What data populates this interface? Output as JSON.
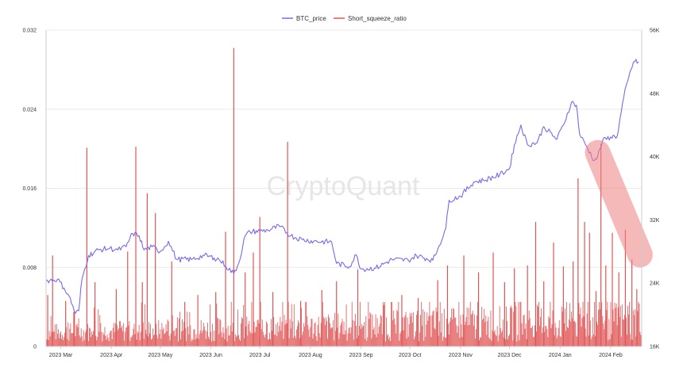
{
  "chart_data": {
    "type": "line",
    "watermark": "CryptoQuant",
    "legend": {
      "position": "top-center",
      "items": [
        {
          "name": "BTC_price",
          "color": "#7b68ee"
        },
        {
          "name": "Short_squeeze_ratio",
          "color": "#e05555"
        }
      ]
    },
    "grid": true,
    "x_start": "2023-02-20",
    "x_end": "2024-02-20",
    "x_tick_labels": [
      "2023 Mar",
      "2023 Apr",
      "2023 May",
      "2023 Jun",
      "2023 Jul",
      "2023 Aug",
      "2023 Sep",
      "2023 Oct",
      "2023 Nov",
      "2023 Dec",
      "2024 Jan",
      "2024 Feb"
    ],
    "y_left": {
      "range": [
        0,
        0.032
      ],
      "ticks": [
        0,
        0.008,
        0.016,
        0.024,
        0.032
      ],
      "tick_labels": [
        "0",
        "0.008",
        "0.016",
        "0.024",
        "0.032"
      ]
    },
    "y_right": {
      "range": [
        16000,
        56000
      ],
      "ticks": [
        16000,
        24000,
        32000,
        40000,
        48000,
        56000
      ],
      "tick_labels": [
        "16K",
        "24K",
        "32K",
        "40K",
        "48K",
        "56K"
      ]
    },
    "series": [
      {
        "name": "BTC_price",
        "axis": "right",
        "kind": "line",
        "color": "#7b68ee",
        "points": [
          [
            "2023-02-20",
            24300
          ],
          [
            "2023-02-27",
            24500
          ],
          [
            "2023-03-03",
            23400
          ],
          [
            "2023-03-06",
            22400
          ],
          [
            "2023-03-10",
            20200
          ],
          [
            "2023-03-12",
            20500
          ],
          [
            "2023-03-14",
            24500
          ],
          [
            "2023-03-18",
            27500
          ],
          [
            "2023-03-24",
            28200
          ],
          [
            "2023-03-31",
            28400
          ],
          [
            "2023-04-05",
            28200
          ],
          [
            "2023-04-10",
            28600
          ],
          [
            "2023-04-14",
            30300
          ],
          [
            "2023-04-18",
            30000
          ],
          [
            "2023-04-21",
            28200
          ],
          [
            "2023-04-26",
            28600
          ],
          [
            "2023-05-01",
            28000
          ],
          [
            "2023-05-06",
            29300
          ],
          [
            "2023-05-11",
            27000
          ],
          [
            "2023-05-20",
            27000
          ],
          [
            "2023-05-28",
            27500
          ],
          [
            "2023-06-03",
            27200
          ],
          [
            "2023-06-06",
            27000
          ],
          [
            "2023-06-10",
            26200
          ],
          [
            "2023-06-15",
            25200
          ],
          [
            "2023-06-18",
            26500
          ],
          [
            "2023-06-22",
            30000
          ],
          [
            "2023-06-25",
            30500
          ],
          [
            "2023-07-01",
            30600
          ],
          [
            "2023-07-06",
            30700
          ],
          [
            "2023-07-13",
            31200
          ],
          [
            "2023-07-20",
            30000
          ],
          [
            "2023-07-27",
            29500
          ],
          [
            "2023-08-03",
            29300
          ],
          [
            "2023-08-14",
            29200
          ],
          [
            "2023-08-17",
            26500
          ],
          [
            "2023-08-25",
            26100
          ],
          [
            "2023-08-29",
            27600
          ],
          [
            "2023-09-01",
            25800
          ],
          [
            "2023-09-10",
            25900
          ],
          [
            "2023-09-20",
            27000
          ],
          [
            "2023-09-30",
            26900
          ],
          [
            "2023-10-05",
            27500
          ],
          [
            "2023-10-15",
            26900
          ],
          [
            "2023-10-18",
            28300
          ],
          [
            "2023-10-23",
            31000
          ],
          [
            "2023-10-25",
            34500
          ],
          [
            "2023-11-01",
            35000
          ],
          [
            "2023-11-09",
            36800
          ],
          [
            "2023-11-15",
            37000
          ],
          [
            "2023-11-25",
            37700
          ],
          [
            "2023-12-01",
            38500
          ],
          [
            "2023-12-04",
            41500
          ],
          [
            "2023-12-08",
            44000
          ],
          [
            "2023-12-12",
            41500
          ],
          [
            "2023-12-18",
            41800
          ],
          [
            "2023-12-22",
            43800
          ],
          [
            "2023-12-30",
            42200
          ],
          [
            "2024-01-03",
            44000
          ],
          [
            "2024-01-08",
            46900
          ],
          [
            "2024-01-11",
            46500
          ],
          [
            "2024-01-13",
            42800
          ],
          [
            "2024-01-18",
            41000
          ],
          [
            "2024-01-22",
            39500
          ],
          [
            "2024-01-24",
            40000
          ],
          [
            "2024-01-27",
            42000
          ],
          [
            "2024-02-01",
            42500
          ],
          [
            "2024-02-05",
            42600
          ],
          [
            "2024-02-09",
            47500
          ],
          [
            "2024-02-12",
            50000
          ],
          [
            "2024-02-15",
            52000
          ],
          [
            "2024-02-18",
            52000
          ]
        ]
      },
      {
        "name": "Short_squeeze_ratio",
        "axis": "left",
        "kind": "spikes",
        "color": "#e05555",
        "baseline_max": 0.002,
        "spikes": [
          [
            "2023-02-21",
            0.0052
          ],
          [
            "2023-02-24",
            0.0092
          ],
          [
            "2023-03-04",
            0.0046
          ],
          [
            "2023-03-09",
            0.0035
          ],
          [
            "2023-03-17",
            0.0201
          ],
          [
            "2023-03-22",
            0.0065
          ],
          [
            "2023-04-04",
            0.0058
          ],
          [
            "2023-04-11",
            0.0096
          ],
          [
            "2023-04-16",
            0.0202
          ],
          [
            "2023-04-20",
            0.0065
          ],
          [
            "2023-04-23",
            0.0155
          ],
          [
            "2023-04-28",
            0.0135
          ],
          [
            "2023-05-08",
            0.0086
          ],
          [
            "2023-05-16",
            0.0045
          ],
          [
            "2023-05-24",
            0.0052
          ],
          [
            "2023-06-04",
            0.0055
          ],
          [
            "2023-06-10",
            0.0116
          ],
          [
            "2023-06-15",
            0.0302
          ],
          [
            "2023-06-22",
            0.0075
          ],
          [
            "2023-06-27",
            0.0095
          ],
          [
            "2023-07-01",
            0.0131
          ],
          [
            "2023-07-09",
            0.0055
          ],
          [
            "2023-07-18",
            0.0207
          ],
          [
            "2023-07-26",
            0.0046
          ],
          [
            "2023-08-08",
            0.0057
          ],
          [
            "2023-08-17",
            0.0066
          ],
          [
            "2023-08-30",
            0.0078
          ],
          [
            "2023-09-15",
            0.0042
          ],
          [
            "2023-09-26",
            0.0052
          ],
          [
            "2023-10-06",
            0.0049
          ],
          [
            "2023-10-18",
            0.0067
          ],
          [
            "2023-10-24",
            0.0082
          ],
          [
            "2023-11-03",
            0.0092
          ],
          [
            "2023-11-12",
            0.0075
          ],
          [
            "2023-11-21",
            0.0095
          ],
          [
            "2023-11-28",
            0.0065
          ],
          [
            "2023-12-04",
            0.0079
          ],
          [
            "2023-12-12",
            0.0082
          ],
          [
            "2023-12-17",
            0.0126
          ],
          [
            "2023-12-22",
            0.0066
          ],
          [
            "2023-12-28",
            0.0105
          ],
          [
            "2024-01-03",
            0.0081
          ],
          [
            "2024-01-09",
            0.0086
          ],
          [
            "2024-01-12",
            0.017
          ],
          [
            "2024-01-16",
            0.0126
          ],
          [
            "2024-01-19",
            0.0115
          ],
          [
            "2024-01-23",
            0.0056
          ],
          [
            "2024-01-26",
            0.0205
          ],
          [
            "2024-01-29",
            0.0082
          ],
          [
            "2024-02-02",
            0.0115
          ],
          [
            "2024-02-06",
            0.0075
          ],
          [
            "2024-02-10",
            0.0118
          ],
          [
            "2024-02-14",
            0.0088
          ],
          [
            "2024-02-17",
            0.0058
          ]
        ]
      }
    ],
    "annotations": [
      {
        "type": "highlight-band",
        "color": "#f08080",
        "from": [
          "2024-01-24",
          40500
        ],
        "to": [
          "2024-02-19",
          27600
        ]
      }
    ]
  }
}
